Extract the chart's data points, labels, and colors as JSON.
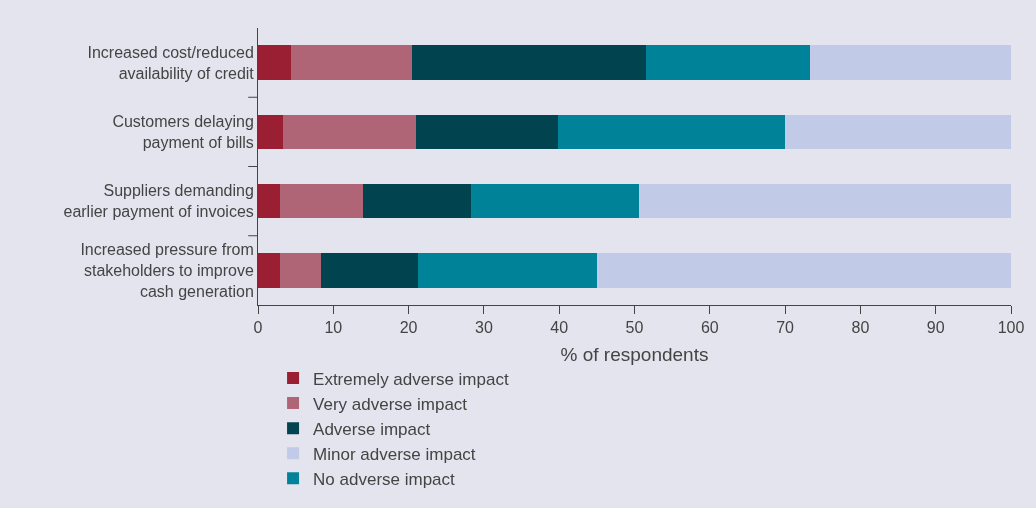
{
  "chart_data": {
    "type": "bar",
    "orientation": "horizontal",
    "stacked": true,
    "xlabel": "% of respondents",
    "categories": [
      "Increased cost/reduced\navailability of credit",
      "Customers delaying\npayment of bills",
      "Suppliers demanding\nearlier payment of invoices",
      "Increased pressure from\nstakeholders to improve\ncash generation"
    ],
    "series": [
      {
        "name": "Extremely adverse impact",
        "color": "#9b1f32",
        "values": [
          4.4,
          3.3,
          2.9,
          2.9
        ]
      },
      {
        "name": "Very adverse impact",
        "color": "#b06577",
        "values": [
          16.1,
          17.7,
          11.0,
          5.5
        ]
      },
      {
        "name": "Adverse impact",
        "color": "#01444f",
        "values": [
          31.0,
          18.9,
          14.4,
          12.8
        ]
      },
      {
        "name": "No adverse impact",
        "color": "#008398",
        "values": [
          21.8,
          30.1,
          22.3,
          23.8
        ]
      },
      {
        "name": "Minor adverse impact",
        "color": "#c1cae6",
        "values": [
          26.7,
          30.0,
          49.4,
          55.0
        ]
      }
    ],
    "xlim": [
      0,
      100
    ],
    "xticks": [
      0,
      10,
      20,
      30,
      40,
      50,
      60,
      70,
      80,
      90,
      100
    ],
    "grid": false,
    "legend": "bottom"
  }
}
